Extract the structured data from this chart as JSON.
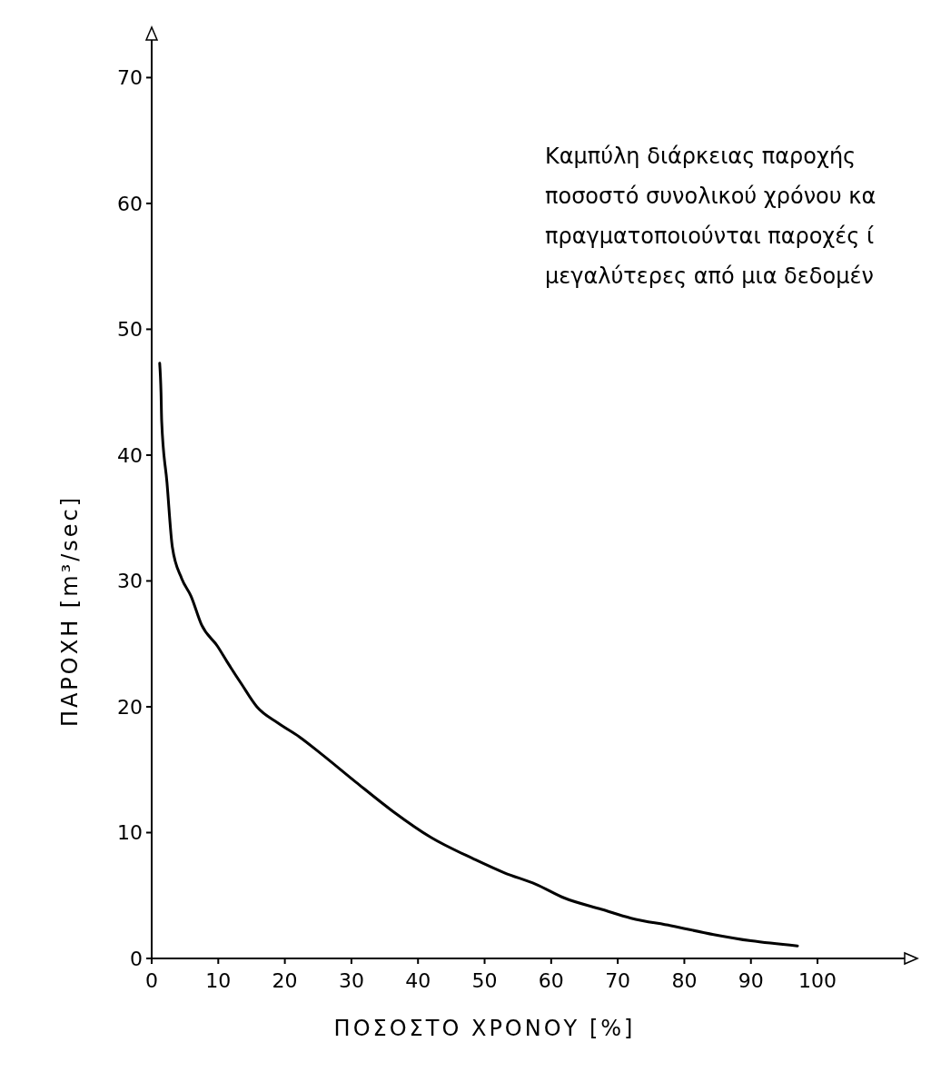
{
  "chart_data": {
    "type": "line",
    "xlabel": "ΠΟΣΟΣΤΟ ΧΡΟΝΟΥ [%]",
    "ylabel": "ΠΑΡΟΧΗ [m³/sec]",
    "annotations": [
      "Καμπύλη διάρκειας παροχής\nποσοστό συνολικού χρόνου κα\nπραγματοποιούνται παροχές ί\nμεγαλύτερες από μια δεδομέν"
    ],
    "series": [
      {
        "color": "#000000",
        "x": [
          1.2,
          1.4,
          1.5,
          2.3,
          3.1,
          4.5,
          5.9,
          7.5,
          9.9,
          11.3,
          13.5,
          15.8,
          19,
          22.2,
          25.6,
          30.7,
          36.2,
          42,
          48.4,
          53,
          57.7,
          62,
          67.6,
          72,
          78,
          84.4,
          90,
          97
        ],
        "values": [
          47.3,
          45,
          42.7,
          37.8,
          32.7,
          30.2,
          28.8,
          26.5,
          24.8,
          23.6,
          21.8,
          20,
          18.7,
          17.6,
          16.2,
          14,
          11.7,
          9.6,
          7.9,
          6.8,
          5.9,
          4.8,
          3.9,
          3.2,
          2.6,
          1.9,
          1.4,
          1
        ]
      }
    ],
    "xlim": [
      0,
      115
    ],
    "ylim": [
      0,
      74
    ],
    "xticks": [
      0,
      10,
      20,
      30,
      40,
      50,
      60,
      70,
      80,
      90,
      100
    ],
    "yticks": [
      0,
      10,
      20,
      30,
      40,
      50,
      60,
      70
    ],
    "grid": false,
    "marker": "none",
    "line_style": "solid"
  }
}
